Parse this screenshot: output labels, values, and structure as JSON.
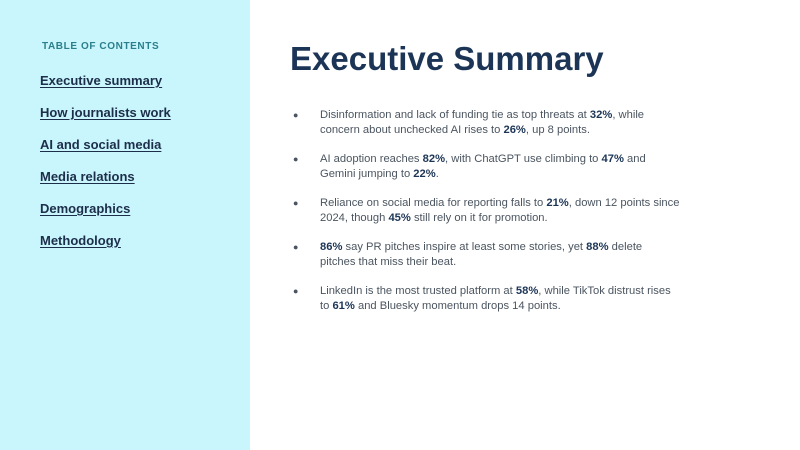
{
  "sidebar": {
    "heading": "TABLE OF CONTENTS",
    "items": [
      {
        "label": "Executive summary"
      },
      {
        "label": "How journalists work"
      },
      {
        "label": "AI and social media"
      },
      {
        "label": "Media relations"
      },
      {
        "label": "Demographics"
      },
      {
        "label": "Methodology"
      }
    ]
  },
  "main": {
    "title": "Executive Summary",
    "bullets": [
      [
        {
          "t": "Disinformation and lack of funding tie as top threats at "
        },
        {
          "t": "32%",
          "b": true
        },
        {
          "t": ", while concern about unchecked AI rises to "
        },
        {
          "t": "26%",
          "b": true
        },
        {
          "t": ", up 8 points."
        }
      ],
      [
        {
          "t": "AI adoption reaches "
        },
        {
          "t": "82%",
          "b": true
        },
        {
          "t": ", with ChatGPT use climbing to "
        },
        {
          "t": "47%",
          "b": true
        },
        {
          "t": " and Gemini jumping to "
        },
        {
          "t": "22%",
          "b": true
        },
        {
          "t": "."
        }
      ],
      [
        {
          "t": "Reliance on social media for reporting falls to "
        },
        {
          "t": "21%",
          "b": true
        },
        {
          "t": ", down 12 points since 2024, though "
        },
        {
          "t": "45%",
          "b": true
        },
        {
          "t": " still rely on it for promotion."
        }
      ],
      [
        {
          "t": "86%",
          "b": true
        },
        {
          "t": " say PR pitches inspire at least some stories, yet "
        },
        {
          "t": "88%",
          "b": true
        },
        {
          "t": " delete pitches that miss their beat."
        }
      ],
      [
        {
          "t": "LinkedIn is the most trusted platform at "
        },
        {
          "t": "58%",
          "b": true
        },
        {
          "t": ", while TikTok distrust rises to "
        },
        {
          "t": "61%",
          "b": true
        },
        {
          "t": " and Bluesky momentum drops 14 points."
        }
      ]
    ]
  }
}
